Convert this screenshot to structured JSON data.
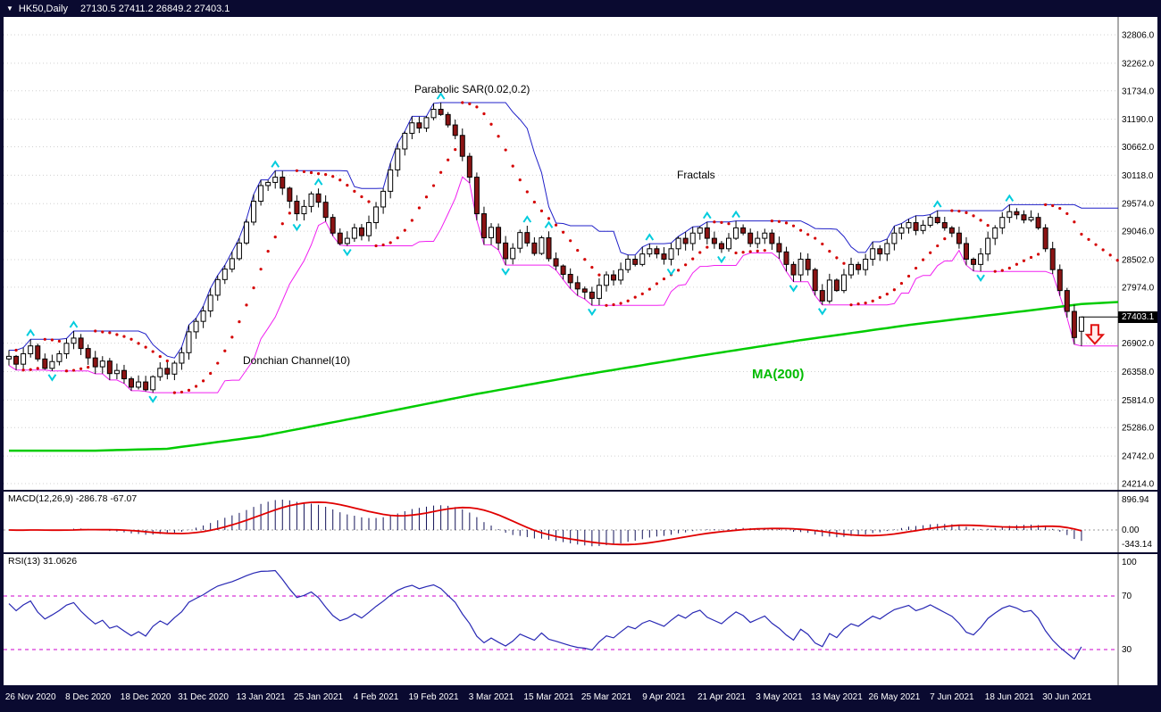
{
  "window": {
    "symbol_label": "HK50,Daily",
    "ohlc": "27130.5 27411.2 26849.2 27403.1"
  },
  "colors": {
    "chrome": "#0a0a30",
    "bull": "#ffffff",
    "bear": "#8b1414",
    "wick": "#000000",
    "donchian_upper": "#2020c8",
    "donchian_lower": "#f020f0",
    "psar": "#d40000",
    "ma200": "#00cc00",
    "fractal": "#00ccdd",
    "macd_hist": "#14145a",
    "macd_signal": "#e00000",
    "rsi_line": "#2828b4",
    "rsi_levels": "#cc00cc",
    "grid": "#d0d0d0",
    "arrow": "#e01010"
  },
  "main_chart": {
    "labels": {
      "psar": "Parabolic SAR(0.02,0.2)",
      "fractals": "Fractals",
      "donchian": "Donchian Channel(10)",
      "ma": "MA(200)"
    },
    "price_axis": [
      "32806.0",
      "32262.0",
      "31734.0",
      "31190.0",
      "30662.0",
      "30118.0",
      "29574.0",
      "29046.0",
      "28502.0",
      "27974.0",
      "26902.0",
      "26358.0",
      "25814.0",
      "25286.0",
      "24742.0",
      "24214.0"
    ],
    "current_price": "27403.1"
  },
  "macd_panel": {
    "label": "MACD(12,26,9) -286.78 -67.07",
    "axis": [
      "896.94",
      "0.00",
      "-343.14"
    ]
  },
  "rsi_panel": {
    "label": "RSI(13) 31.0626",
    "axis": [
      "100",
      "70",
      "30"
    ]
  },
  "date_axis": [
    "26 Nov 2020",
    "8 Dec 2020",
    "18 Dec 2020",
    "31 Dec 2020",
    "13 Jan 2021",
    "25 Jan 2021",
    "4 Feb 2021",
    "19 Feb 2021",
    "3 Mar 2021",
    "15 Mar 2021",
    "25 Mar 2021",
    "9 Apr 2021",
    "21 Apr 2021",
    "3 May 2021",
    "13 May 2021",
    "26 May 2021",
    "7 Jun 2021",
    "18 Jun 2021",
    "30 Jun 2021"
  ],
  "chart_data": {
    "type": "candlestick",
    "symbol": "HK50",
    "timeframe": "Daily",
    "price_range": {
      "top": 32806.0,
      "bottom": 24214.0
    },
    "first_open": 26600,
    "closes": [
      26650,
      26500,
      26700,
      26850,
      26600,
      26420,
      26550,
      26700,
      26900,
      27000,
      26800,
      26620,
      26450,
      26560,
      26320,
      26380,
      26220,
      26060,
      26160,
      26010,
      26260,
      26420,
      26310,
      26520,
      26720,
      27120,
      27320,
      27520,
      27820,
      28120,
      28320,
      28520,
      28820,
      29220,
      29620,
      29920,
      29980,
      30080,
      29870,
      29620,
      29380,
      29520,
      29760,
      29600,
      29310,
      29010,
      28810,
      28910,
      29110,
      28960,
      29210,
      29510,
      29810,
      30220,
      30620,
      30920,
      31120,
      31020,
      31220,
      31380,
      31280,
      31080,
      30880,
      30480,
      30080,
      29380,
      28920,
      29120,
      28820,
      28520,
      28720,
      29020,
      28820,
      28620,
      28920,
      28520,
      28380,
      28220,
      28060,
      27940,
      27880,
      27760,
      28010,
      28210,
      28110,
      28310,
      28510,
      28410,
      28610,
      28710,
      28610,
      28510,
      28710,
      28910,
      28810,
      29010,
      29110,
      28910,
      28810,
      28710,
      28910,
      29110,
      29010,
      28810,
      28910,
      29010,
      28810,
      28650,
      28410,
      28210,
      28510,
      28310,
      27910,
      27710,
      28110,
      27910,
      28210,
      28410,
      28310,
      28510,
      28710,
      28610,
      28810,
      29010,
      29110,
      29210,
      29060,
      29160,
      29310,
      29210,
      29110,
      29010,
      28810,
      28510,
      28410,
      28610,
      28910,
      29110,
      29310,
      29420,
      29360,
      29260,
      29310,
      29110,
      28710,
      28310,
      27910,
      27510,
      27010,
      27403.1
    ],
    "last_candle": {
      "open": 27130.5,
      "high": 27411.2,
      "low": 26849.2,
      "close": 27403.1
    },
    "label_indices": [
      3,
      11,
      19,
      27,
      35,
      43,
      51,
      59,
      67,
      75,
      83,
      91,
      99,
      107,
      115,
      123,
      131,
      139,
      147
    ],
    "ma200_anchors": [
      [
        0,
        24845
      ],
      [
        12,
        24845
      ],
      [
        22,
        24880
      ],
      [
        35,
        25120
      ],
      [
        50,
        25520
      ],
      [
        65,
        25930
      ],
      [
        80,
        26300
      ],
      [
        95,
        26640
      ],
      [
        110,
        26960
      ],
      [
        125,
        27250
      ],
      [
        140,
        27500
      ],
      [
        149,
        27650
      ]
    ],
    "psar": {
      "step": 0.02,
      "maximum": 0.2
    },
    "donchian": {
      "period": 10
    },
    "macd": {
      "fast": 12,
      "slow": 26,
      "signal": 9,
      "value": -286.78,
      "signal_value": -67.07
    },
    "rsi": {
      "period": 13,
      "value": 31.0626,
      "levels": [
        70,
        30
      ]
    },
    "ma": {
      "period": 200
    }
  }
}
